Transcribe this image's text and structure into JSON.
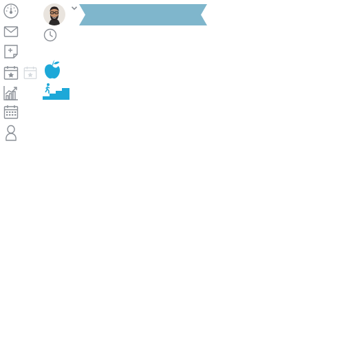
{
  "colors": {
    "nav_icon": "#8a8f96",
    "faded_icon": "#d5d9de",
    "banner": "#7fb6cc",
    "accent_blue": "#1da8d8"
  },
  "sidebar": {
    "items": [
      {
        "icon": "dashboard-gauge-icon"
      },
      {
        "icon": "mail-icon"
      },
      {
        "icon": "new-note-icon"
      },
      {
        "icon": "favorite-calendar-icon"
      },
      {
        "icon": "growth-chart-icon"
      },
      {
        "icon": "calendar-icon"
      },
      {
        "icon": "user-icon"
      }
    ]
  },
  "header": {
    "avatar_icon": "user-avatar",
    "menu_icon": "chevron-down-icon",
    "banner_icon": "ribbon-banner"
  },
  "widgets": {
    "clock_icon": "clock-icon",
    "nutrition_icon": "apple-icon",
    "activity_icon": "stairs-climb-icon"
  }
}
